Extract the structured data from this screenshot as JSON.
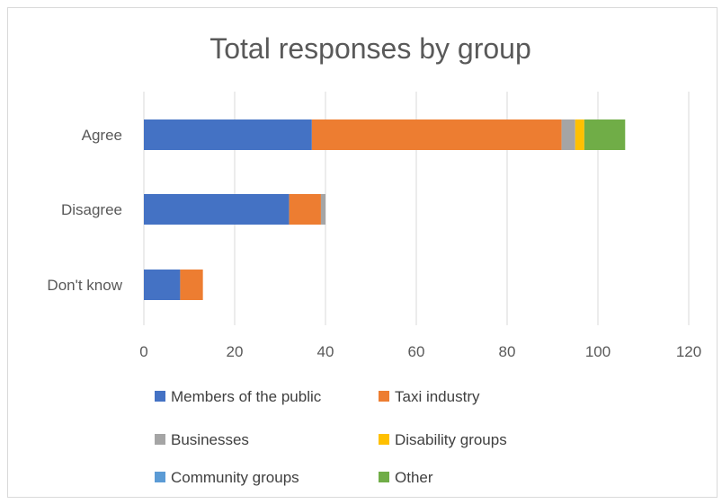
{
  "chart_data": {
    "type": "bar",
    "orientation": "horizontal",
    "stacked": true,
    "title": "Total responses by group",
    "categories": [
      "Agree",
      "Disagree",
      "Don't know"
    ],
    "series": [
      {
        "name": "Members of the public",
        "color": "#4472C4",
        "values": [
          37,
          32,
          8
        ]
      },
      {
        "name": "Taxi industry",
        "color": "#ED7D31",
        "values": [
          55,
          7,
          5
        ]
      },
      {
        "name": "Businesses",
        "color": "#A5A5A5",
        "values": [
          3,
          1,
          0
        ]
      },
      {
        "name": "Disability groups",
        "color": "#FFC000",
        "values": [
          2,
          0,
          0
        ]
      },
      {
        "name": "Community groups",
        "color": "#5B9BD5",
        "values": [
          0,
          0,
          0
        ]
      },
      {
        "name": "Other",
        "color": "#70AD47",
        "values": [
          9,
          0,
          0
        ]
      }
    ],
    "xlim": [
      0,
      120
    ],
    "xticks": [
      "0",
      "20",
      "40",
      "60",
      "80",
      "100",
      "120"
    ],
    "grid": true,
    "legend": "bottom"
  }
}
